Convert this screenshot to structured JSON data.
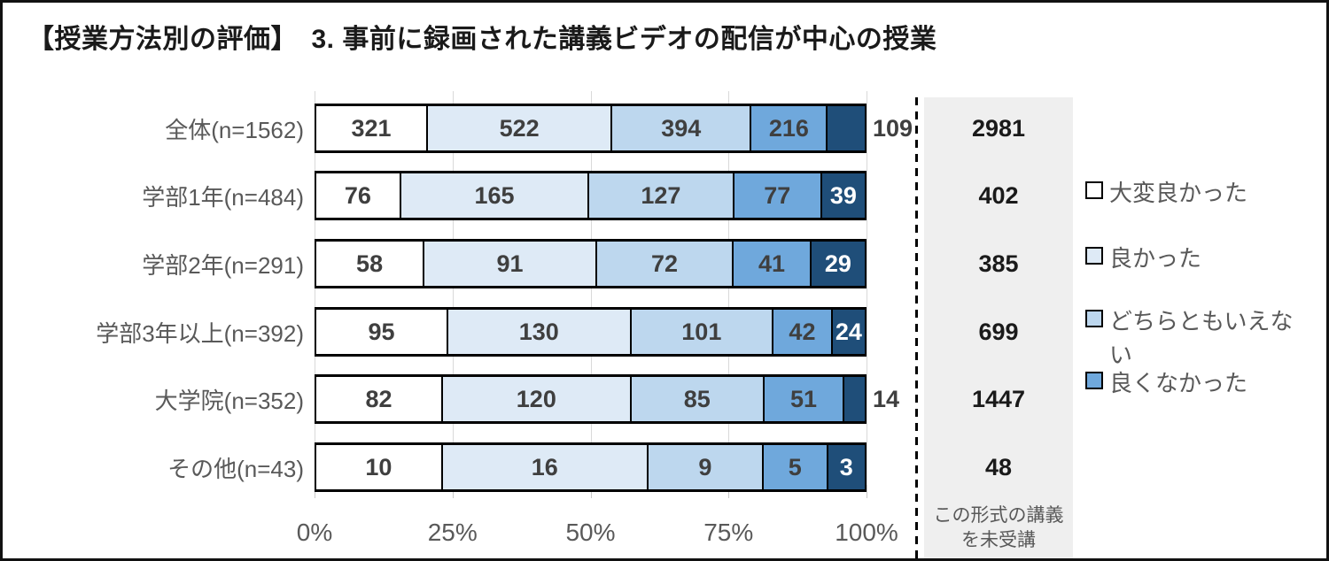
{
  "title": "【授業方法別の評価】　3. 事前に録画された講義ビデオの配信が中心の授業",
  "chart_data": {
    "type": "bar",
    "orientation": "horizontal",
    "stacked": true,
    "value_scale": "each row normalized to 100% of its n",
    "categories": [
      "全体(n=1562)",
      "学部1年(n=484)",
      "学部2年(n=291)",
      "学部3年以上(n=392)",
      "大学院(n=352)",
      "その他(n=43)"
    ],
    "n": [
      1562,
      484,
      291,
      392,
      352,
      43
    ],
    "series": [
      {
        "name": "大変良かった",
        "color": "#ffffff",
        "values": [
          321,
          76,
          58,
          95,
          82,
          10
        ]
      },
      {
        "name": "良かった",
        "color": "#deeaf6",
        "values": [
          522,
          165,
          91,
          130,
          120,
          16
        ]
      },
      {
        "name": "どちらともいえない",
        "color": "#bdd7ee",
        "values": [
          394,
          127,
          72,
          101,
          85,
          9
        ]
      },
      {
        "name": "良くなかった",
        "color": "#6fa8dc",
        "values": [
          216,
          77,
          41,
          42,
          51,
          5
        ]
      },
      {
        "name": "",
        "color": "#1f4e79",
        "values": [
          109,
          39,
          29,
          24,
          14,
          3
        ]
      }
    ],
    "xlabel": "",
    "ylabel": "",
    "x_ticks": [
      "0%",
      "25%",
      "50%",
      "75%",
      "100%"
    ],
    "xlim": [
      0,
      100
    ],
    "grid": "vertical",
    "legend_position": "right",
    "last_segment_label_outside_rows": [
      0,
      4
    ]
  },
  "legend": {
    "items": [
      {
        "label": "大変良かった",
        "color": "#ffffff"
      },
      {
        "label": "良かった",
        "color": "#deeaf6"
      },
      {
        "label": "どちらともいえない",
        "color": "#bdd7ee"
      },
      {
        "label": "良くなかった",
        "color": "#6fa8dc"
      }
    ]
  },
  "right_column": {
    "footer_lines": [
      "この形式の講義",
      "を未受講"
    ],
    "values": [
      "2981",
      "402",
      "385",
      "699",
      "1447",
      "48"
    ]
  },
  "style": {
    "gray_box": "#efefef",
    "gridline": "#d9d9d9",
    "bar_border": "#000000",
    "label_gray": "#595959",
    "value_text": "#3f3f3f",
    "dark_segment": "#1f4e79"
  }
}
